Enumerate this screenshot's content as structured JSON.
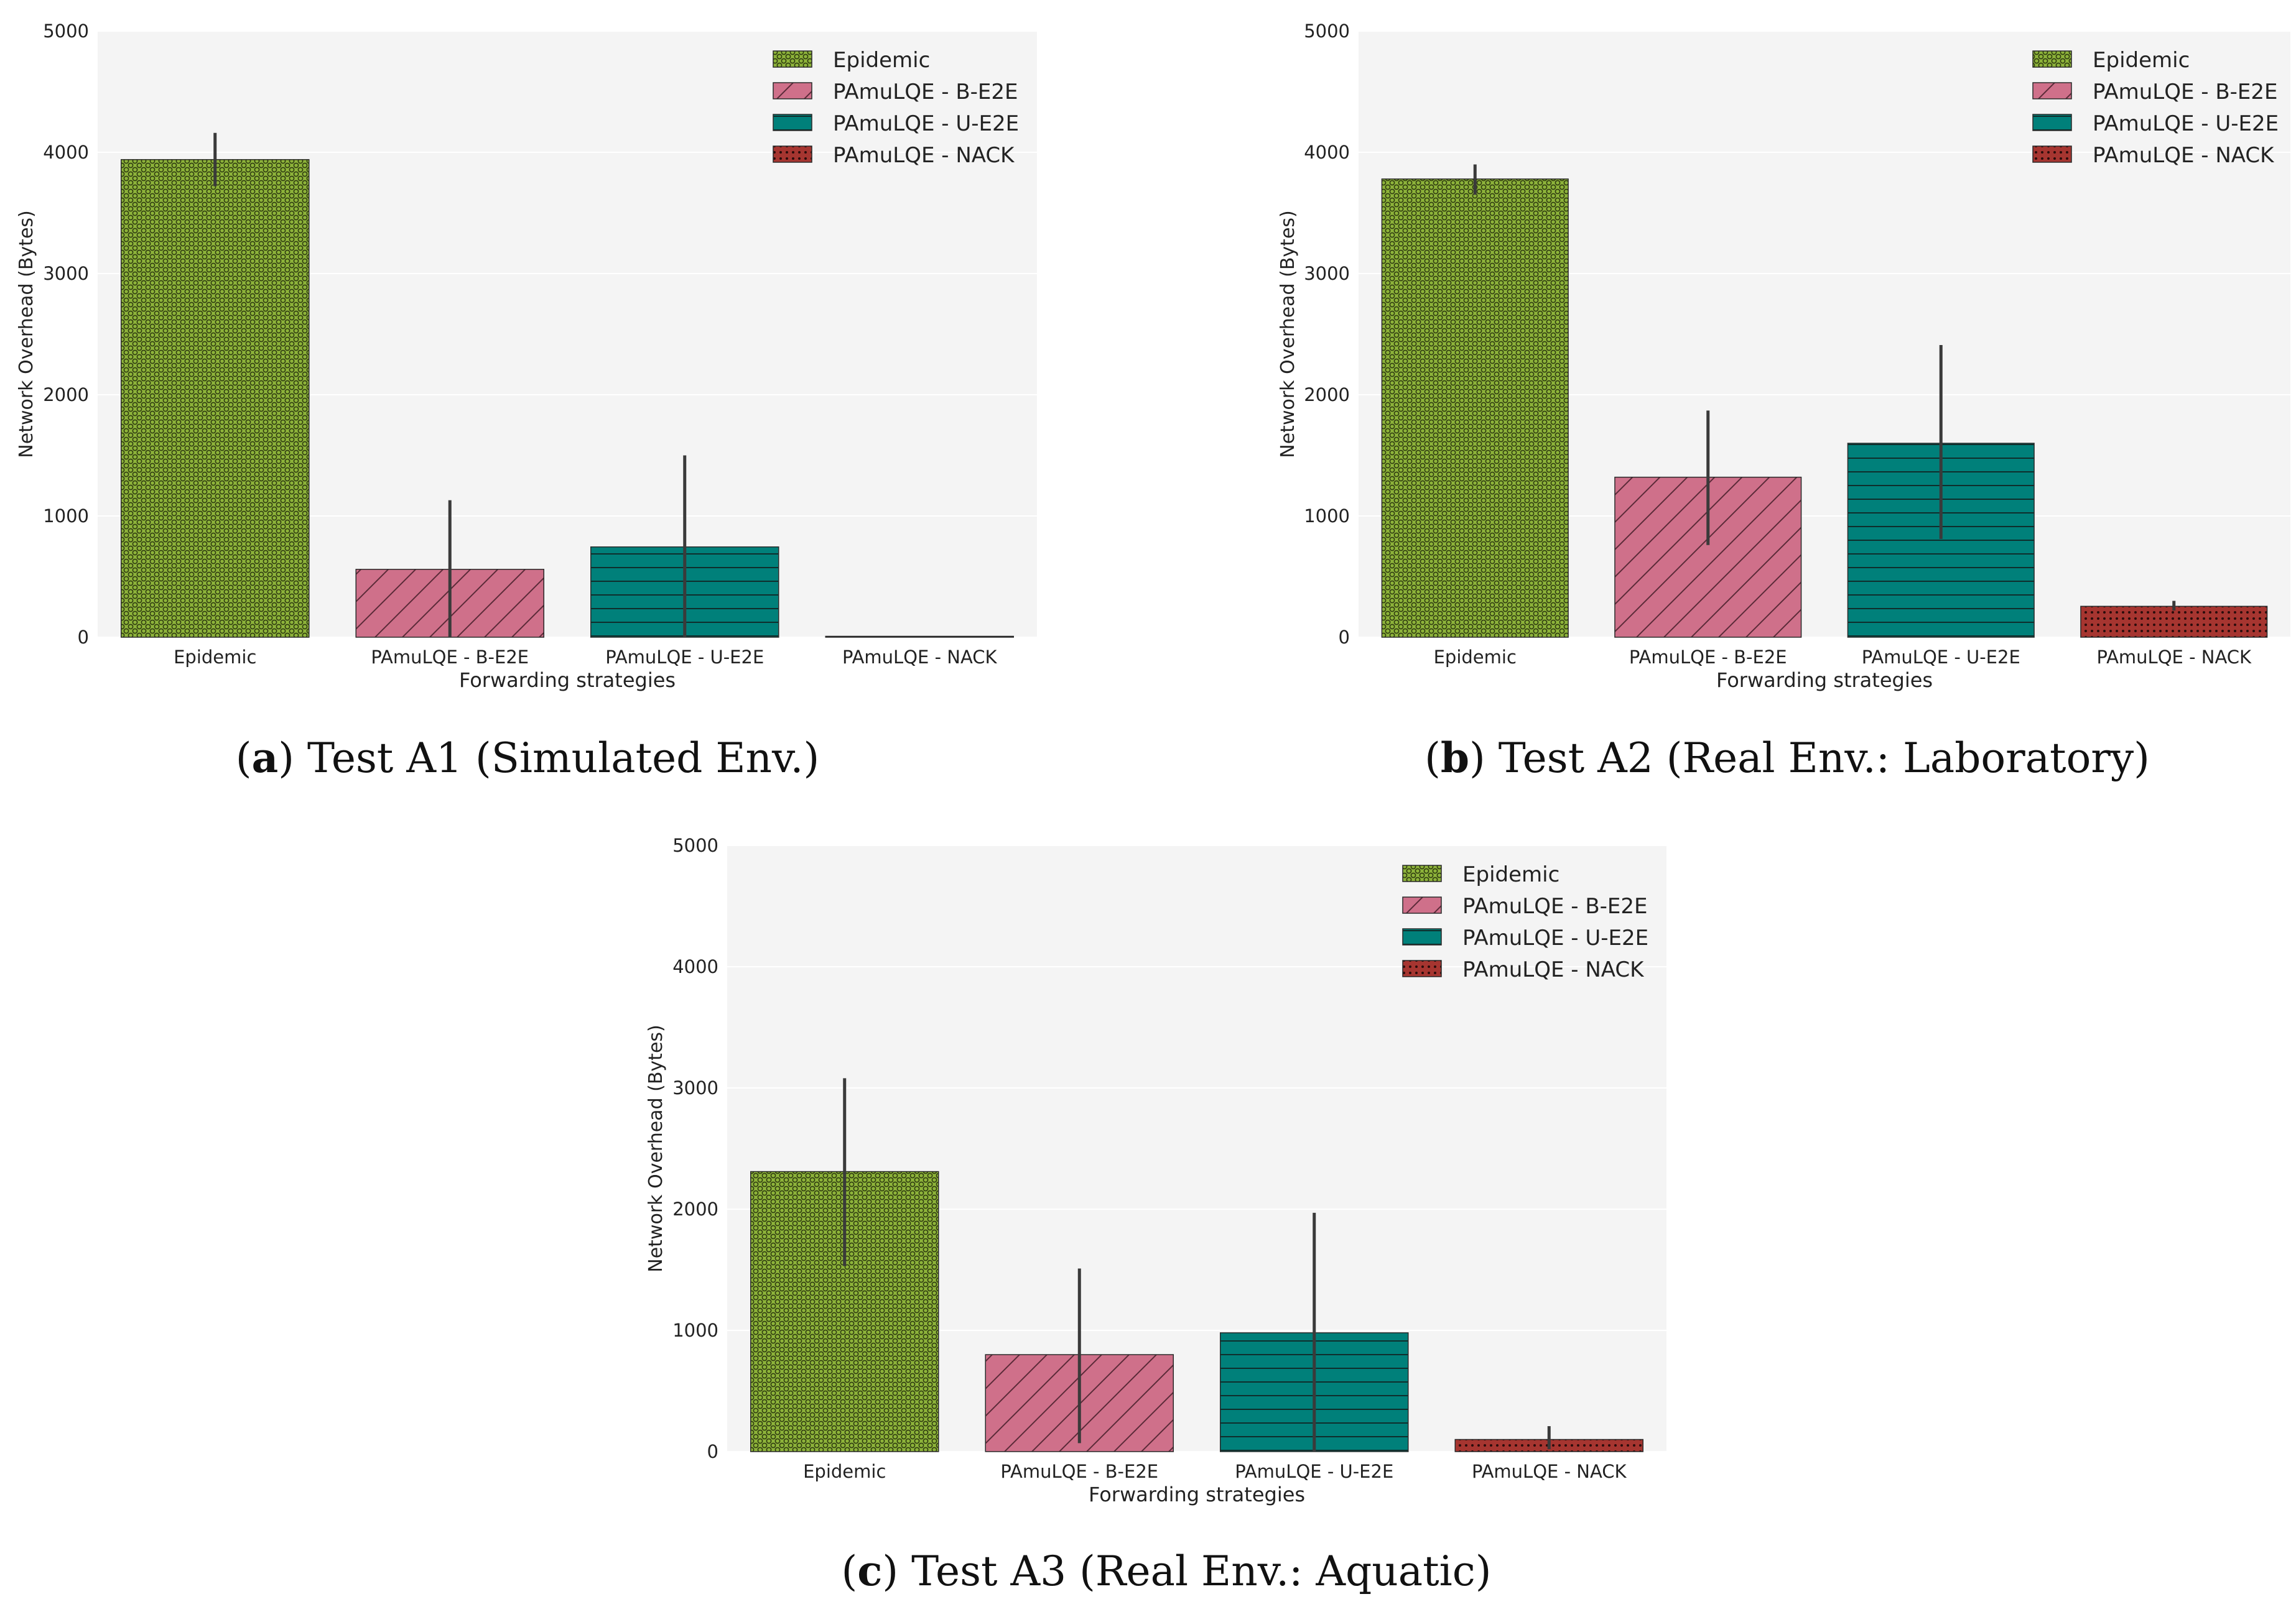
{
  "colors": {
    "epidemic": "#8db33a",
    "b_e2e": "#cf708a",
    "u_e2e": "#00807a",
    "nack": "#a63530",
    "plot_bg": "#f4f4f4",
    "grid": "#ffffff",
    "errbar": "#3a3a3a"
  },
  "chart_data": [
    {
      "id": "a",
      "type": "bar",
      "caption_letter": "a",
      "caption_text": "Test A1 (Simulated Env.)",
      "xlabel": "Forwarding strategies",
      "ylabel": "Network Overhead (Bytes)",
      "ylim": [
        0,
        5000
      ],
      "yticks": [
        "0",
        "1000",
        "2000",
        "3000",
        "4000",
        "5000"
      ],
      "categories": [
        "Epidemic",
        "PAmuLQE - B-E2E",
        "PAmuLQE - U-E2E",
        "PAmuLQE - NACK"
      ],
      "values": [
        3940,
        560,
        745,
        0
      ],
      "err_low": [
        3720,
        0,
        0,
        0
      ],
      "err_high": [
        4160,
        1130,
        1500,
        0
      ],
      "legend": [
        "Epidemic",
        "PAmuLQE - B-E2E",
        "PAmuLQE - U-E2E",
        "PAmuLQE - NACK"
      ],
      "legend_position": "top-right",
      "grid": true
    },
    {
      "id": "b",
      "type": "bar",
      "caption_letter": "b",
      "caption_text": "Test A2 (Real Env.: Laboratory)",
      "xlabel": "Forwarding strategies",
      "ylabel": "Network Overhead (Bytes)",
      "ylim": [
        0,
        5000
      ],
      "yticks": [
        "0",
        "1000",
        "2000",
        "3000",
        "4000",
        "5000"
      ],
      "categories": [
        "Epidemic",
        "PAmuLQE - B-E2E",
        "PAmuLQE - U-E2E",
        "PAmuLQE - NACK"
      ],
      "values": [
        3780,
        1320,
        1600,
        255
      ],
      "err_low": [
        3650,
        760,
        810,
        220
      ],
      "err_high": [
        3900,
        1870,
        2410,
        300
      ],
      "legend": [
        "Epidemic",
        "PAmuLQE - B-E2E",
        "PAmuLQE - U-E2E",
        "PAmuLQE - NACK"
      ],
      "legend_position": "top-right",
      "grid": true
    },
    {
      "id": "c",
      "type": "bar",
      "caption_letter": "c",
      "caption_text": "Test A3 (Real Env.: Aquatic)",
      "xlabel": "Forwarding strategies",
      "ylabel": "Network Overhead (Bytes)",
      "ylim": [
        0,
        5000
      ],
      "yticks": [
        "0",
        "1000",
        "2000",
        "3000",
        "4000",
        "5000"
      ],
      "categories": [
        "Epidemic",
        "PAmuLQE - B-E2E",
        "PAmuLQE - U-E2E",
        "PAmuLQE - NACK"
      ],
      "values": [
        2310,
        800,
        980,
        100
      ],
      "err_low": [
        1530,
        70,
        0,
        20
      ],
      "err_high": [
        3080,
        1510,
        1970,
        210
      ],
      "legend": [
        "Epidemic",
        "PAmuLQE - B-E2E",
        "PAmuLQE - U-E2E",
        "PAmuLQE - NACK"
      ],
      "legend_position": "top-right",
      "grid": true
    }
  ]
}
